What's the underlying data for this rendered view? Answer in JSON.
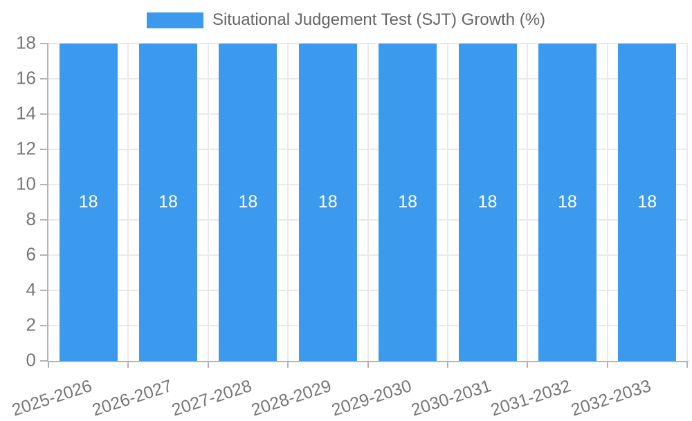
{
  "chart_data": {
    "type": "bar",
    "title": "Situational Judgement Test (SJT) Growth (%)",
    "legend_entries": [
      "Situational Judgement Test (SJT) Growth (%)"
    ],
    "legend_position": "top-center",
    "categories": [
      "2025-2026",
      "2026-2027",
      "2027-2028",
      "2028-2029",
      "2029-2030",
      "2030-2031",
      "2031-2032",
      "2032-2033"
    ],
    "values": [
      18,
      18,
      18,
      18,
      18,
      18,
      18,
      18
    ],
    "bar_value_labels": [
      "18",
      "18",
      "18",
      "18",
      "18",
      "18",
      "18",
      "18"
    ],
    "xlabel": "",
    "ylabel": "",
    "ylim": [
      0,
      18
    ],
    "ytick_step": 2,
    "ytick_labels": [
      "0",
      "2",
      "4",
      "6",
      "8",
      "10",
      "12",
      "14",
      "16",
      "18"
    ],
    "grid": true,
    "x_label_rotation_deg": -18,
    "colors": {
      "bar": "#3B99EE",
      "bar_label": "#FFFFFF",
      "tick_label": "#777777",
      "legend_label": "#666666",
      "gridline": "#E9E9E9",
      "axis_line": "#B3B3B3",
      "background": "#FFFFFF"
    }
  }
}
